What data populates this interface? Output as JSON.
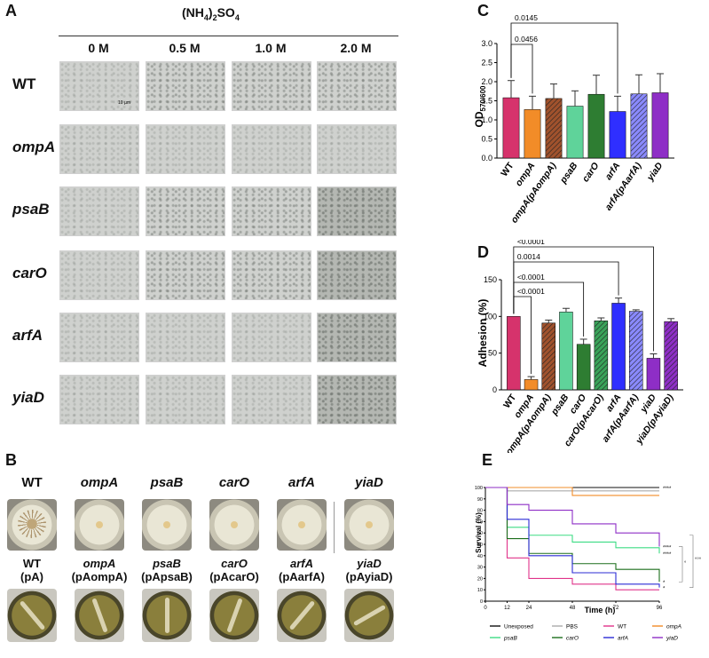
{
  "panels": {
    "A": "A",
    "B": "B",
    "C": "C",
    "D": "D",
    "E": "E"
  },
  "panelA": {
    "title_main": "(NH",
    "title_sub1": "4",
    "title_mid": ")",
    "title_sub2": "2",
    "title_end": "SO",
    "title_sub3": "4",
    "columns": [
      "0 M",
      "0.5 M",
      "1.0 M",
      "2.0 M"
    ],
    "rows": [
      "WT",
      "ompA",
      "psaB",
      "carO",
      "arfA",
      "yiaD"
    ],
    "scale_bar": "10 µm"
  },
  "panelB": {
    "top": [
      "WT",
      "ompA",
      "psaB",
      "carO",
      "arfA",
      "yiaD"
    ],
    "bottom": [
      {
        "l1": "WT",
        "l2": "(pA)",
        "i2": false
      },
      {
        "l1": "ompA",
        "l2": "(pAompA)",
        "i2": true
      },
      {
        "l1": "psaB",
        "l2": "(pApsaB)",
        "i2": true
      },
      {
        "l1": "carO",
        "l2": "(pAcarO)",
        "i2": true
      },
      {
        "l1": "arfA",
        "l2": "(pAarfA)",
        "i2": true
      },
      {
        "l1": "yiaD",
        "l2": "(pAyiaD)",
        "i2": true
      }
    ]
  },
  "chartC": {
    "ylabel": "OD",
    "ylabel_sub": "570/600",
    "ylim": [
      0,
      3.0
    ],
    "yticks": [
      "0.0",
      "0.5",
      "1.0",
      "1.5",
      "2.0",
      "2.5",
      "3.0"
    ],
    "categories": [
      "WT",
      "ompA",
      "ompA(pAompA)",
      "psaB",
      "carO",
      "arfA",
      "arfA(pAarfA)",
      "yiaD"
    ],
    "values": [
      1.58,
      1.27,
      1.56,
      1.36,
      1.67,
      1.22,
      1.68,
      1.71
    ],
    "errors": [
      0.45,
      0.35,
      0.38,
      0.4,
      0.5,
      0.4,
      0.5,
      0.5
    ],
    "colors": [
      "#d6336c",
      "#f28c28",
      "#a0522d",
      "#5fd39a",
      "#2e7d32",
      "#2f2fff",
      "#8a8aff",
      "#8e2ec6"
    ],
    "hatched": [
      false,
      false,
      true,
      false,
      false,
      false,
      true,
      false
    ],
    "pvalues": [
      {
        "from": 0,
        "to": 1,
        "label": "0.0456"
      },
      {
        "from": 0,
        "to": 5,
        "label": "0.0145"
      }
    ]
  },
  "chartD": {
    "ylabel": "Adhesion (%)",
    "ylim": [
      0,
      150
    ],
    "yticks": [
      "0",
      "50",
      "100",
      "150"
    ],
    "categories": [
      "WT",
      "ompA",
      "ompA(pAompA)",
      "psaB",
      "carO",
      "carO(pAcarO)",
      "arfA",
      "arfA(pAarfA)",
      "yiaD",
      "yiaD(pAyiaD)"
    ],
    "values": [
      100,
      14,
      91,
      106,
      62,
      94,
      118,
      107,
      43,
      93
    ],
    "errors": [
      0,
      4,
      4,
      5,
      7,
      4,
      7,
      2,
      6,
      4
    ],
    "colors": [
      "#d6336c",
      "#f28c28",
      "#a0522d",
      "#5fd39a",
      "#2e7d32",
      "#3aa35a",
      "#2f2fff",
      "#8a8aff",
      "#8e2ec6",
      "#8e2ec6"
    ],
    "hatched": [
      false,
      false,
      true,
      false,
      false,
      true,
      false,
      true,
      false,
      true
    ],
    "pvalues": [
      {
        "from": 0,
        "to": 1,
        "label": "<0.0001"
      },
      {
        "from": 0,
        "to": 4,
        "label": "<0.0001"
      },
      {
        "from": 0,
        "to": 6,
        "label": "0.0014"
      },
      {
        "from": 0,
        "to": 8,
        "label": "<0.0001"
      }
    ]
  },
  "chartE": {
    "ylabel": "Survival (%)",
    "xlabel": "Time (h)",
    "xticks": [
      0,
      12,
      24,
      48,
      72,
      96
    ],
    "yticks": [
      0,
      10,
      20,
      30,
      40,
      50,
      60,
      70,
      80,
      90,
      100
    ],
    "series": [
      {
        "name": "Unexposed",
        "color": "#111111",
        "points": [
          [
            0,
            100
          ],
          [
            12,
            100
          ],
          [
            96,
            100
          ]
        ]
      },
      {
        "name": "PBS",
        "color": "#aaaaaa",
        "points": [
          [
            0,
            100
          ],
          [
            12,
            97
          ],
          [
            96,
            97
          ]
        ]
      },
      {
        "name": "WT",
        "color": "#e0338a",
        "points": [
          [
            0,
            100
          ],
          [
            12,
            38
          ],
          [
            24,
            20
          ],
          [
            48,
            15
          ],
          [
            72,
            10
          ],
          [
            96,
            10
          ]
        ]
      },
      {
        "name": "ompA",
        "color": "#f28c28",
        "points": [
          [
            0,
            100
          ],
          [
            12,
            100
          ],
          [
            48,
            93
          ],
          [
            96,
            93
          ]
        ]
      },
      {
        "name": "psaB",
        "color": "#3ddc84",
        "points": [
          [
            0,
            100
          ],
          [
            12,
            65
          ],
          [
            24,
            58
          ],
          [
            48,
            52
          ],
          [
            72,
            47
          ],
          [
            96,
            42
          ]
        ]
      },
      {
        "name": "carO",
        "color": "#1b6e1b",
        "points": [
          [
            0,
            100
          ],
          [
            12,
            55
          ],
          [
            24,
            42
          ],
          [
            48,
            33
          ],
          [
            72,
            28
          ],
          [
            96,
            17
          ]
        ]
      },
      {
        "name": "arfA",
        "color": "#2b2bd6",
        "points": [
          [
            0,
            100
          ],
          [
            12,
            72
          ],
          [
            24,
            40
          ],
          [
            48,
            25
          ],
          [
            72,
            15
          ],
          [
            96,
            12
          ]
        ]
      },
      {
        "name": "yiaD",
        "color": "#8e2ec6",
        "points": [
          [
            0,
            100
          ],
          [
            12,
            85
          ],
          [
            24,
            80
          ],
          [
            48,
            68
          ],
          [
            72,
            60
          ],
          [
            96,
            48
          ]
        ]
      }
    ],
    "marks": [
      "****",
      "****",
      "****",
      "*",
      "*"
    ],
    "bracket_marks": [
      "°",
      "°°°"
    ]
  }
}
